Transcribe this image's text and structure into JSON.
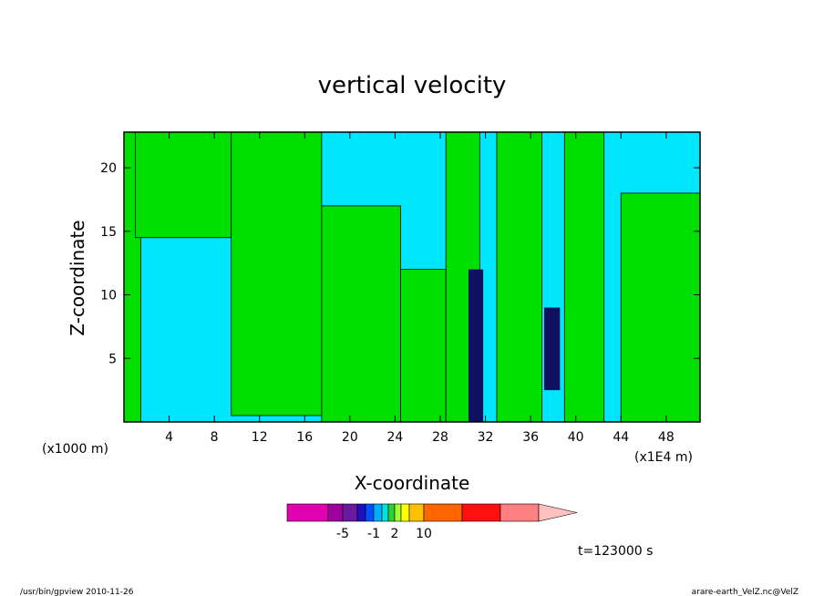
{
  "chart_data": {
    "type": "heatmap",
    "title": "vertical velocity",
    "xlabel": "X-coordinate",
    "ylabel": "Z-coordinate",
    "x_unit_left": "(x1000 m)",
    "x_unit_right": "(x1E4 m)",
    "xlim": [
      0,
      51
    ],
    "ylim": [
      0,
      22.8
    ],
    "x_ticks": [
      4,
      8,
      12,
      16,
      20,
      24,
      28,
      32,
      36,
      40,
      44,
      48
    ],
    "y_ticks": [
      5,
      10,
      15,
      20
    ],
    "grid": false,
    "colorbar": {
      "colors": [
        "#e000b0",
        "#a000a0",
        "#6a1aa0",
        "#2010c0",
        "#0050ff",
        "#00b0ff",
        "#00e0e0",
        "#30d030",
        "#a0ff30",
        "#ffff00",
        "#ffc000",
        "#ff6600",
        "#ff1010",
        "#ff8080",
        "#ffc0c0"
      ],
      "tick_labels": [
        "-5",
        "-1",
        "2",
        "10"
      ],
      "tick_index": [
        2,
        5,
        8,
        11
      ]
    },
    "field_colors": {
      "background": "#00e6ff",
      "upward": "#00e000",
      "strong": "#101060",
      "contour": "#000000"
    },
    "upward_regions": [
      {
        "x0": 0,
        "x1": 1.5,
        "z0": 0,
        "z1": 22.8
      },
      {
        "x0": 1,
        "x1": 9.5,
        "z0": 14.5,
        "z1": 22.8
      },
      {
        "x0": 9.5,
        "x1": 17.5,
        "z0": 0.5,
        "z1": 22.8
      },
      {
        "x0": 17.5,
        "x1": 24.5,
        "z0": 0,
        "z1": 17
      },
      {
        "x0": 24.5,
        "x1": 28.5,
        "z0": 0,
        "z1": 12
      },
      {
        "x0": 28.5,
        "x1": 31.5,
        "z0": 0,
        "z1": 22.8
      },
      {
        "x0": 33,
        "x1": 37,
        "z0": 0,
        "z1": 22.8
      },
      {
        "x0": 39,
        "x1": 42.5,
        "z0": 0,
        "z1": 22.8
      },
      {
        "x0": 44,
        "x1": 51,
        "z0": 0,
        "z1": 18
      }
    ],
    "strong_regions": [
      {
        "x0": 30.5,
        "x1": 31.8,
        "z0": 0,
        "z1": 12
      },
      {
        "x0": 37.2,
        "x1": 38.6,
        "z0": 2.5,
        "z1": 9
      }
    ],
    "time": "t=123000 s"
  },
  "footer": {
    "left": "/usr/bin/gpview   2010-11-26",
    "right": "arare-earth_VelZ.nc@VelZ"
  }
}
